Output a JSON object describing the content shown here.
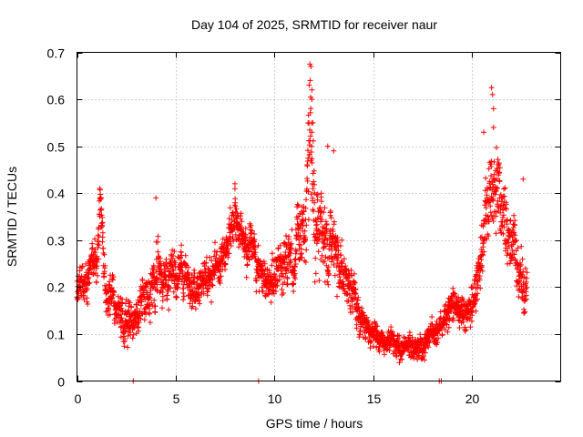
{
  "chart_data": {
    "type": "scatter",
    "title": "Day 104 of 2025, SRMTID for receiver naur",
    "xlabel": "GPS time / hours",
    "ylabel": "SRMTID / TECUs",
    "xlim": [
      0,
      24.5
    ],
    "ylim": [
      0,
      0.7
    ],
    "x_ticks": [
      0,
      5,
      10,
      15,
      20
    ],
    "y_ticks": [
      0,
      0.1,
      0.2,
      0.3,
      0.4,
      0.5,
      0.6,
      0.7
    ],
    "x_tick_labels": [
      "0",
      "5",
      "10",
      "15",
      "20"
    ],
    "y_tick_labels": [
      "0",
      "0.1",
      "0.2",
      "0.3",
      "0.4",
      "0.5",
      "0.6",
      "0.7"
    ],
    "grid": true,
    "marker": "+",
    "color": "#ff0000",
    "sample_step_hours": 0.0083,
    "series": [
      {
        "name": "SRMTID",
        "profile_x": [
          0,
          0.5,
          1.0,
          1.2,
          1.5,
          2.0,
          2.5,
          3.0,
          3.5,
          4.0,
          4.5,
          5.0,
          5.5,
          6.0,
          6.5,
          7.0,
          7.5,
          8.0,
          8.5,
          9.0,
          9.5,
          10.0,
          10.5,
          11.0,
          11.5,
          11.8,
          12.2,
          12.6,
          13.0,
          13.5,
          14.0,
          14.5,
          15.0,
          15.5,
          16.0,
          16.5,
          17.0,
          17.5,
          18.0,
          18.5,
          19.0,
          19.5,
          20.0,
          20.5,
          21.0,
          21.3,
          21.6,
          22.0,
          22.5,
          22.8
        ],
        "profile_y": [
          0.18,
          0.22,
          0.27,
          0.35,
          0.18,
          0.15,
          0.14,
          0.13,
          0.18,
          0.22,
          0.24,
          0.23,
          0.21,
          0.2,
          0.22,
          0.24,
          0.28,
          0.34,
          0.3,
          0.27,
          0.2,
          0.22,
          0.23,
          0.25,
          0.33,
          0.45,
          0.32,
          0.3,
          0.27,
          0.22,
          0.18,
          0.13,
          0.1,
          0.09,
          0.08,
          0.07,
          0.07,
          0.08,
          0.1,
          0.12,
          0.16,
          0.15,
          0.15,
          0.3,
          0.42,
          0.45,
          0.35,
          0.32,
          0.22,
          0.2
        ],
        "spread": [
          0.05,
          0.05,
          0.06,
          0.07,
          0.05,
          0.05,
          0.05,
          0.05,
          0.06,
          0.06,
          0.06,
          0.06,
          0.05,
          0.05,
          0.05,
          0.05,
          0.05,
          0.06,
          0.05,
          0.05,
          0.05,
          0.06,
          0.06,
          0.06,
          0.1,
          0.15,
          0.12,
          0.11,
          0.09,
          0.07,
          0.05,
          0.04,
          0.035,
          0.03,
          0.03,
          0.03,
          0.03,
          0.03,
          0.03,
          0.035,
          0.04,
          0.04,
          0.05,
          0.08,
          0.1,
          0.11,
          0.08,
          0.08,
          0.07,
          0.07
        ],
        "peaks": [
          {
            "x": 1.15,
            "y": 0.41
          },
          {
            "x": 4.0,
            "y": 0.39
          },
          {
            "x": 8.0,
            "y": 0.42
          },
          {
            "x": 11.8,
            "y": 0.675
          },
          {
            "x": 11.85,
            "y": 0.67
          },
          {
            "x": 11.9,
            "y": 0.62
          },
          {
            "x": 11.9,
            "y": 0.6
          },
          {
            "x": 11.95,
            "y": 0.55
          },
          {
            "x": 12.7,
            "y": 0.5
          },
          {
            "x": 13.0,
            "y": 0.49
          },
          {
            "x": 20.6,
            "y": 0.53
          },
          {
            "x": 21.0,
            "y": 0.625
          },
          {
            "x": 21.05,
            "y": 0.61
          },
          {
            "x": 21.1,
            "y": 0.58
          },
          {
            "x": 21.1,
            "y": 0.54
          },
          {
            "x": 22.6,
            "y": 0.43
          }
        ],
        "zeros_x": [
          2.85,
          9.2,
          18.35,
          18.45
        ]
      }
    ]
  }
}
